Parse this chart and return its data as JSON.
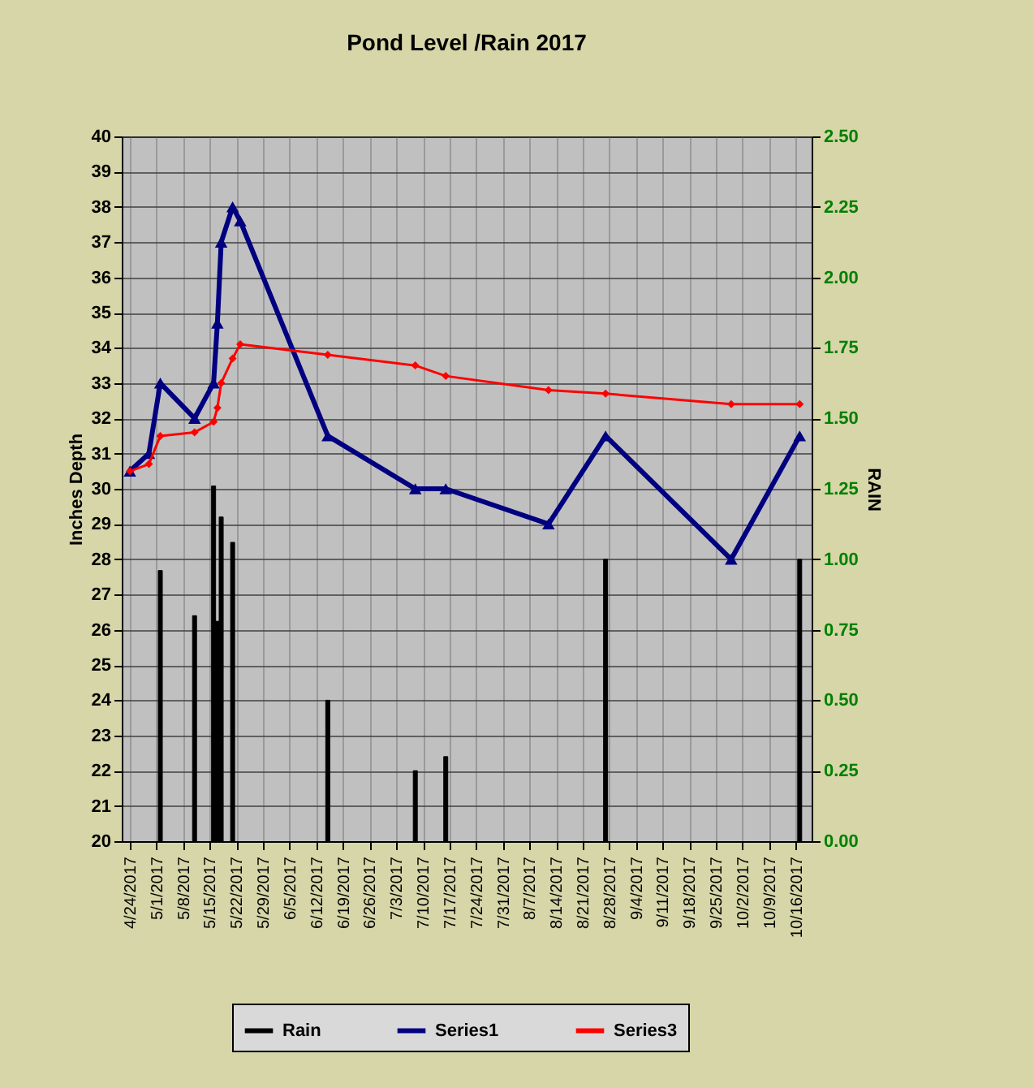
{
  "chart_data": {
    "type": "line",
    "title": "Pond Level /Rain 2017",
    "ylabel": "Inches Depth",
    "y2label": "RAIN",
    "xlim": [
      "2017-04-24",
      "2017-10-18"
    ],
    "xticks": [
      {
        "value": "2017-04-24",
        "label": "4/24/2017"
      },
      {
        "value": "2017-05-01",
        "label": "5/1/2017"
      },
      {
        "value": "2017-05-08",
        "label": "5/8/2017"
      },
      {
        "value": "2017-05-15",
        "label": "5/15/2017"
      },
      {
        "value": "2017-05-22",
        "label": "5/22/2017"
      },
      {
        "value": "2017-05-29",
        "label": "5/29/2017"
      },
      {
        "value": "2017-06-05",
        "label": "6/5/2017"
      },
      {
        "value": "2017-06-12",
        "label": "6/12/2017"
      },
      {
        "value": "2017-06-19",
        "label": "6/19/2017"
      },
      {
        "value": "2017-06-26",
        "label": "6/26/2017"
      },
      {
        "value": "2017-07-03",
        "label": "7/3/2017"
      },
      {
        "value": "2017-07-10",
        "label": "7/10/2017"
      },
      {
        "value": "2017-07-17",
        "label": "7/17/2017"
      },
      {
        "value": "2017-07-24",
        "label": "7/24/2017"
      },
      {
        "value": "2017-07-31",
        "label": "7/31/2017"
      },
      {
        "value": "2017-08-07",
        "label": "8/7/2017"
      },
      {
        "value": "2017-08-14",
        "label": "8/14/2017"
      },
      {
        "value": "2017-08-21",
        "label": "8/21/2017"
      },
      {
        "value": "2017-08-28",
        "label": "8/28/2017"
      },
      {
        "value": "2017-09-04",
        "label": "9/4/2017"
      },
      {
        "value": "2017-09-11",
        "label": "9/11/2017"
      },
      {
        "value": "2017-09-18",
        "label": "9/18/2017"
      },
      {
        "value": "2017-09-25",
        "label": "9/25/2017"
      },
      {
        "value": "2017-10-02",
        "label": "10/2/2017"
      },
      {
        "value": "2017-10-09",
        "label": "10/9/2017"
      },
      {
        "value": "2017-10-16",
        "label": "10/16/2017"
      }
    ],
    "ylim": [
      20,
      40
    ],
    "yticks": [
      20,
      21,
      22,
      23,
      24,
      25,
      26,
      27,
      28,
      29,
      30,
      31,
      32,
      33,
      34,
      35,
      36,
      37,
      38,
      39,
      40
    ],
    "y2lim": [
      0,
      2.5
    ],
    "y2ticks": [
      {
        "value": 0,
        "label": "0.00"
      },
      {
        "value": 0.25,
        "label": "0.25"
      },
      {
        "value": 0.5,
        "label": "0.50"
      },
      {
        "value": 0.75,
        "label": "0.75"
      },
      {
        "value": 1,
        "label": "1.00"
      },
      {
        "value": 1.25,
        "label": "1.25"
      },
      {
        "value": 1.5,
        "label": "1.50"
      },
      {
        "value": 1.75,
        "label": "1.75"
      },
      {
        "value": 2,
        "label": "2.00"
      },
      {
        "value": 2.25,
        "label": "2.25"
      },
      {
        "value": 2.5,
        "label": "2.50"
      }
    ],
    "grid": true,
    "legend": "bottom",
    "series": [
      {
        "name": "Rain",
        "type": "bar",
        "axis": "y2",
        "color": "#000000",
        "x": [
          "2017-05-02",
          "2017-05-11",
          "2017-05-16",
          "2017-05-17",
          "2017-05-18",
          "2017-05-21",
          "2017-06-15",
          "2017-07-08",
          "2017-07-16",
          "2017-08-27",
          "2017-10-17"
        ],
        "values": [
          0.96,
          0.8,
          1.26,
          0.78,
          1.15,
          1.06,
          0.5,
          0.25,
          0.3,
          1.0,
          1.0
        ]
      },
      {
        "name": "Series1",
        "color": "#000080",
        "marker": "triangle",
        "x": [
          "2017-04-24",
          "2017-04-29",
          "2017-05-02",
          "2017-05-11",
          "2017-05-16",
          "2017-05-17",
          "2017-05-18",
          "2017-05-21",
          "2017-05-23",
          "2017-06-15",
          "2017-07-08",
          "2017-07-16",
          "2017-08-12",
          "2017-08-27",
          "2017-09-29",
          "2017-10-17"
        ],
        "values": [
          30.5,
          31.0,
          33.0,
          32.0,
          33.0,
          34.7,
          37.0,
          38.0,
          37.6,
          31.5,
          30.0,
          30.0,
          29.0,
          31.5,
          28.0,
          31.5
        ]
      },
      {
        "name": "Series3",
        "color": "#ff0000",
        "marker": "diamond",
        "x": [
          "2017-04-24",
          "2017-04-29",
          "2017-05-02",
          "2017-05-11",
          "2017-05-16",
          "2017-05-17",
          "2017-05-18",
          "2017-05-21",
          "2017-05-23",
          "2017-06-15",
          "2017-07-08",
          "2017-07-16",
          "2017-08-12",
          "2017-08-27",
          "2017-09-29",
          "2017-10-17"
        ],
        "values": [
          30.5,
          30.7,
          31.5,
          31.6,
          31.9,
          32.3,
          33.0,
          33.7,
          34.1,
          33.8,
          33.5,
          33.2,
          32.8,
          32.7,
          32.4,
          32.4
        ]
      }
    ]
  }
}
